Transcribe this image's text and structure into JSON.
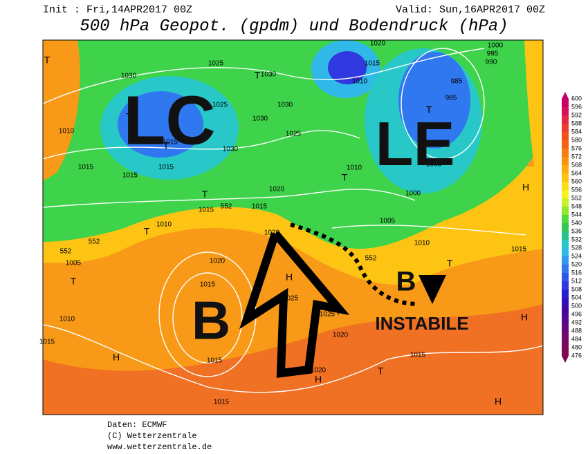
{
  "header": {
    "init": "Init : Fri,14APR2017 00Z",
    "valid": "Valid: Sun,16APR2017 00Z",
    "title": "500 hPa Geopot. (gpdm) und Bodendruck (hPa)"
  },
  "annotations": {
    "lc": "LC",
    "le": "LE",
    "b_west": "B",
    "b_east": "B",
    "instabile": "INSTABILE"
  },
  "isobar_labels": [
    1030,
    1025,
    1030,
    1025,
    1030,
    1030,
    1025,
    1030,
    1015,
    1015,
    1010,
    1015,
    1015,
    1020,
    1015,
    1015,
    1010,
    1020,
    1020,
    1015,
    1025,
    1025,
    1020,
    1015,
    1010,
    1005,
    1015,
    1015,
    1020,
    1015,
    1010,
    1015,
    1020,
    1000,
    995,
    990,
    985,
    985,
    1005,
    1000,
    1005,
    1010,
    1015,
    1010,
    552,
    552,
    552,
    552
  ],
  "pressure_centers": [
    "T",
    "T",
    "T",
    "T",
    "T",
    "T",
    "T",
    "T",
    "T",
    "T",
    "T",
    "T",
    "H",
    "H",
    "H",
    "H",
    "H",
    "H"
  ],
  "colorbar": {
    "labels": [
      600,
      596,
      592,
      588,
      584,
      580,
      576,
      572,
      568,
      564,
      560,
      556,
      552,
      548,
      544,
      540,
      536,
      532,
      528,
      524,
      520,
      516,
      512,
      508,
      504,
      500,
      496,
      492,
      488,
      484,
      480,
      476
    ],
    "colors": [
      "#c8006a",
      "#d8105a",
      "#e42848",
      "#ec3c30",
      "#f0501c",
      "#f46414",
      "#f87c10",
      "#fa9410",
      "#fcac10",
      "#fdc414",
      "#fedc18",
      "#f8f020",
      "#c8f028",
      "#90e830",
      "#50d83c",
      "#30c850",
      "#28c090",
      "#28c8c8",
      "#30b8e8",
      "#3098f0",
      "#3078f0",
      "#3058e8",
      "#3038e0",
      "#2820d0",
      "#3010b8",
      "#4008a0",
      "#500890",
      "#600880",
      "#700870",
      "#780860",
      "#800850"
    ]
  },
  "footer": {
    "source": "Daten: ECMWF",
    "copyright": "(C) Wetterzentrale",
    "url": "www.wetterzentrale.de"
  }
}
